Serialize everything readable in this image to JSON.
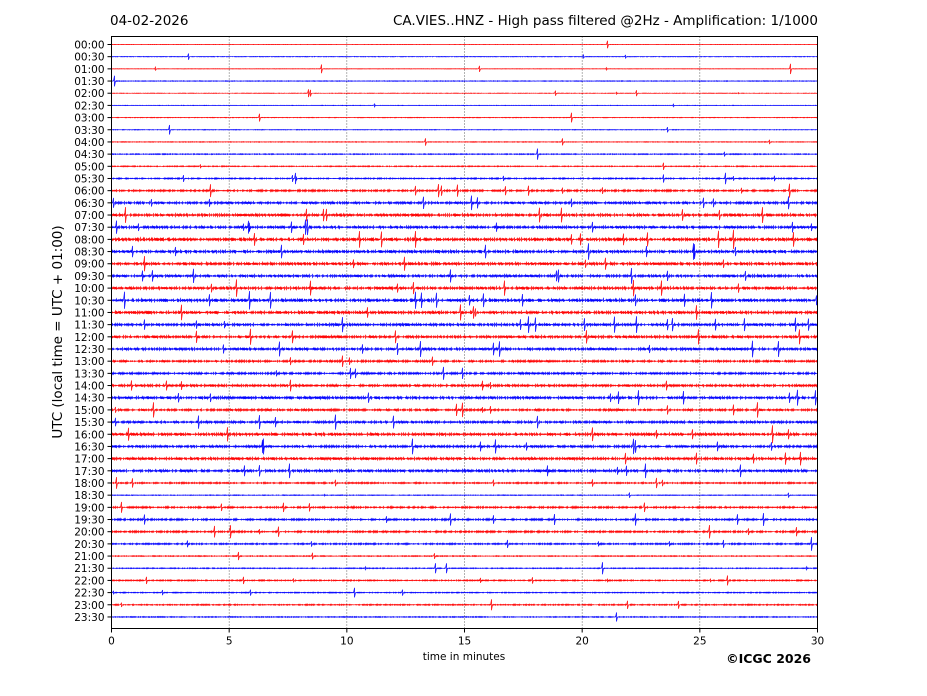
{
  "chart_data": {
    "type": "line",
    "title": "CA.VIES..HNZ - High pass filtered @2Hz - Amplification: 1/1000",
    "date": "04-02-2026",
    "xlabel": "time in minutes",
    "ylabel": "UTC (local time = UTC + 01:00)",
    "xlim": [
      0,
      30
    ],
    "x_ticks": [
      "0",
      "5",
      "10",
      "15",
      "20",
      "25",
      "30"
    ],
    "grid": "vertical dotted every 5 minutes",
    "copyright": "©ICGC 2026",
    "series_colors": [
      "#ff0000",
      "#0000ff"
    ],
    "rows": [
      "00:00",
      "00:30",
      "01:00",
      "01:30",
      "02:00",
      "02:30",
      "03:00",
      "03:30",
      "04:00",
      "04:30",
      "05:00",
      "05:30",
      "06:00",
      "06:30",
      "07:00",
      "07:30",
      "08:00",
      "08:30",
      "09:00",
      "09:30",
      "10:00",
      "10:30",
      "11:00",
      "11:30",
      "12:00",
      "12:30",
      "13:00",
      "13:30",
      "14:00",
      "14:30",
      "15:00",
      "15:30",
      "16:00",
      "16:30",
      "17:00",
      "17:30",
      "18:00",
      "18:30",
      "19:00",
      "19:30",
      "20:00",
      "20:30",
      "21:00",
      "21:30",
      "22:00",
      "22:30",
      "23:00",
      "23:30"
    ],
    "activity": [
      0.05,
      0.15,
      0.1,
      0.2,
      0.1,
      0.1,
      0.15,
      0.15,
      0.2,
      0.3,
      0.3,
      0.4,
      0.6,
      0.8,
      1.0,
      0.9,
      1.2,
      1.0,
      1.0,
      0.9,
      1.0,
      1.1,
      1.0,
      0.9,
      0.9,
      0.9,
      0.7,
      0.7,
      0.8,
      0.9,
      0.7,
      0.8,
      1.0,
      0.8,
      0.9,
      0.9,
      0.5,
      0.2,
      0.6,
      0.6,
      0.6,
      0.5,
      0.3,
      0.3,
      0.4,
      0.3,
      0.4,
      0.3
    ]
  }
}
